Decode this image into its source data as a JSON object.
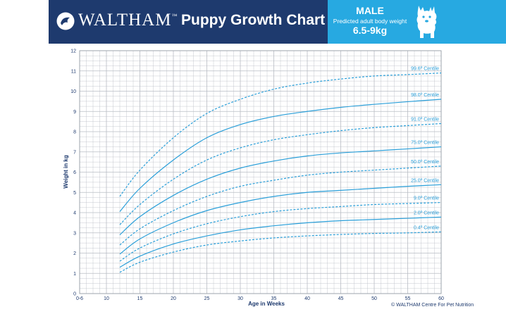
{
  "header": {
    "brand": "WALTHAM",
    "trademark": "™",
    "title": "Puppy Growth Chart",
    "sex": "MALE",
    "subtitle": "Predicted adult body weight",
    "weight_range": "6.5-9kg"
  },
  "footer": {
    "credit": "© WALTHAM Centre For Pet Nutrition"
  },
  "colors": {
    "navy": "#1e3a6e",
    "accent": "#27a9e1",
    "curve": "#2a9fd9",
    "grid": "#b9bdc4"
  },
  "icons": {
    "logo": "waltham-logo-icon",
    "dog": "westie-dog-icon"
  },
  "chart_data": {
    "type": "line",
    "xlabel": "Age in Weeks",
    "ylabel": "Weight in kg",
    "xlim": [
      6,
      60
    ],
    "ylim": [
      0,
      12
    ],
    "x_tick_labels": [
      {
        "x": 6,
        "label": "0-6"
      },
      {
        "x": 10,
        "label": "10"
      },
      {
        "x": 15,
        "label": "15"
      },
      {
        "x": 20,
        "label": "20"
      },
      {
        "x": 25,
        "label": "25"
      },
      {
        "x": 30,
        "label": "30"
      },
      {
        "x": 35,
        "label": "35"
      },
      {
        "x": 40,
        "label": "40"
      },
      {
        "x": 45,
        "label": "45"
      },
      {
        "x": 50,
        "label": "50"
      },
      {
        "x": 55,
        "label": "55"
      },
      {
        "x": 60,
        "label": "60"
      }
    ],
    "y_ticks": [
      0,
      1,
      2,
      3,
      4,
      5,
      6,
      7,
      8,
      9,
      10,
      11,
      12
    ],
    "grid": true,
    "minor_x_step": 1,
    "minor_y_step": 0.25,
    "x": [
      12,
      15,
      20,
      25,
      30,
      35,
      40,
      45,
      50,
      55,
      60
    ],
    "series": [
      {
        "name": "99.6º Centile",
        "style": "dashed",
        "values": [
          4.8,
          6.1,
          7.7,
          8.9,
          9.6,
          10.1,
          10.4,
          10.6,
          10.75,
          10.82,
          10.9
        ]
      },
      {
        "name": "98.0º Centile",
        "style": "solid",
        "values": [
          4.05,
          5.2,
          6.6,
          7.7,
          8.35,
          8.75,
          9.0,
          9.2,
          9.35,
          9.48,
          9.6
        ]
      },
      {
        "name": "91.0º Centile",
        "style": "dashed",
        "values": [
          3.4,
          4.4,
          5.65,
          6.6,
          7.2,
          7.6,
          7.85,
          8.05,
          8.2,
          8.3,
          8.4
        ]
      },
      {
        "name": "75.0º Centile",
        "style": "solid",
        "values": [
          2.9,
          3.8,
          4.85,
          5.65,
          6.2,
          6.55,
          6.8,
          6.95,
          7.05,
          7.15,
          7.25
        ]
      },
      {
        "name": "50.0º Centile",
        "style": "dashed",
        "values": [
          2.4,
          3.2,
          4.1,
          4.8,
          5.3,
          5.6,
          5.85,
          6.0,
          6.1,
          6.2,
          6.3
        ]
      },
      {
        "name": "25.0º Centile",
        "style": "solid",
        "values": [
          1.95,
          2.7,
          3.5,
          4.1,
          4.5,
          4.8,
          5.0,
          5.1,
          5.2,
          5.3,
          5.38
        ]
      },
      {
        "name": "9.0º Centile",
        "style": "dashed",
        "values": [
          1.6,
          2.25,
          2.95,
          3.45,
          3.8,
          4.05,
          4.2,
          4.3,
          4.4,
          4.45,
          4.5
        ]
      },
      {
        "name": "2.0º Centile",
        "style": "solid",
        "values": [
          1.3,
          1.85,
          2.45,
          2.85,
          3.15,
          3.35,
          3.5,
          3.6,
          3.66,
          3.72,
          3.78
        ]
      },
      {
        "name": "0.4º Centile",
        "style": "dashed",
        "values": [
          1.05,
          1.55,
          2.05,
          2.4,
          2.6,
          2.75,
          2.85,
          2.92,
          2.97,
          3.0,
          3.05
        ]
      }
    ]
  }
}
